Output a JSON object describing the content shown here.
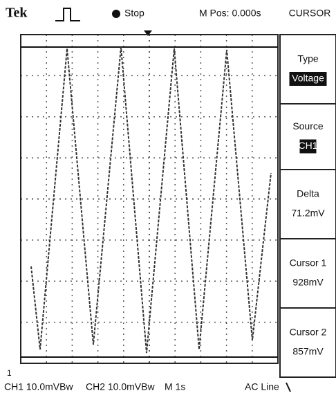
{
  "header": {
    "brand": "Tek",
    "state": "Stop",
    "position": "M Pos: 0.000s",
    "menu": "CURSOR"
  },
  "menu": [
    {
      "label": "Type",
      "value": "Voltage"
    },
    {
      "label": "Source",
      "value": "CH1"
    },
    {
      "label": "Delta",
      "value": "71.2mV"
    },
    {
      "label": "Cursor 1",
      "value": "928mV"
    },
    {
      "label": "Cursor 2",
      "value": "857mV"
    }
  ],
  "footer": {
    "marker": "1",
    "ch1": "CH1 10.0mVBw",
    "ch2": "CH2 10.0mVBw",
    "timebase": "M 1s",
    "trigger": "AC Line"
  }
}
